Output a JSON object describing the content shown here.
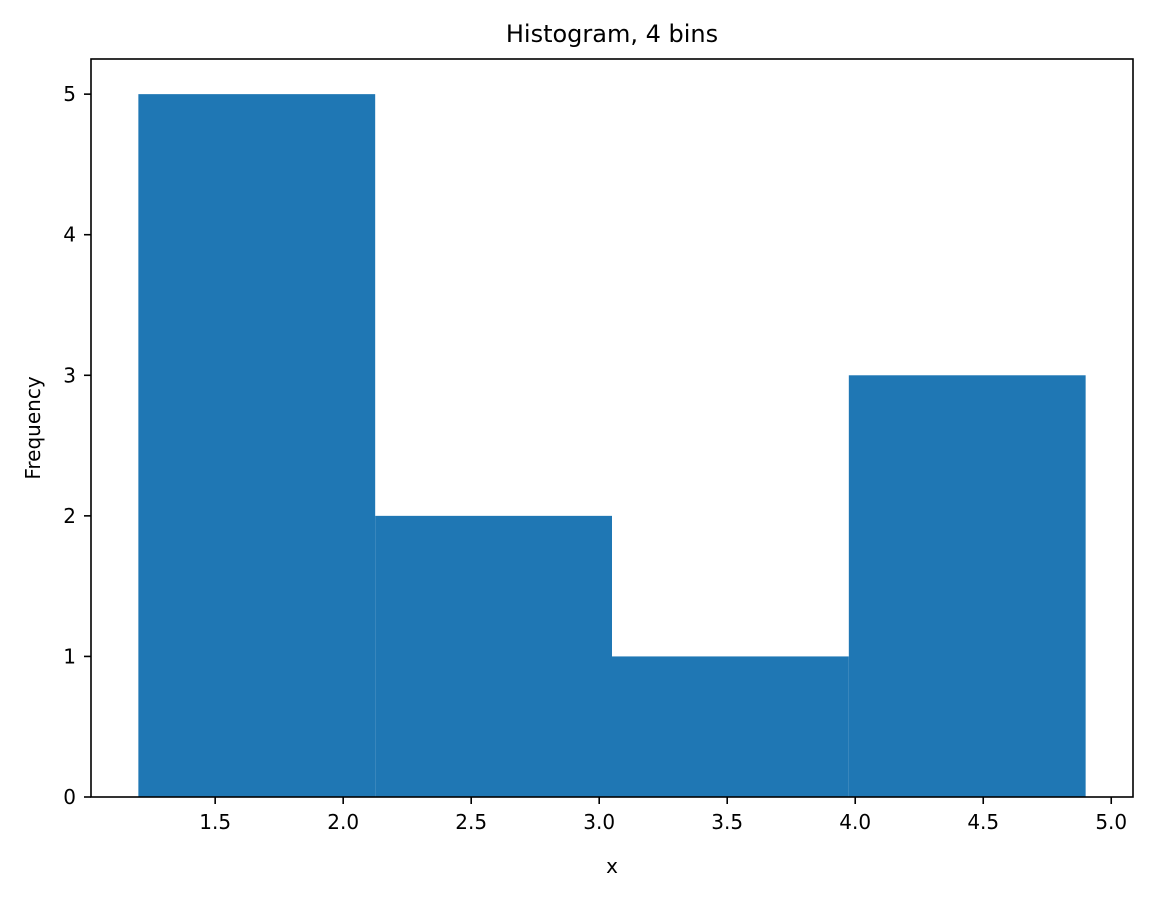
{
  "chart_data": {
    "type": "bar",
    "title": "Histogram, 4 bins",
    "xlabel": "x",
    "ylabel": "Frequency",
    "bin_edges": [
      1.2,
      2.125,
      3.05,
      3.975,
      4.9
    ],
    "values": [
      5,
      2,
      1,
      3
    ],
    "xlim": [
      1.015,
      5.085
    ],
    "ylim": [
      0,
      5.25
    ],
    "x_ticks": [
      1.5,
      2.0,
      2.5,
      3.0,
      3.5,
      4.0,
      4.5,
      5.0
    ],
    "x_tick_labels": [
      "1.5",
      "2.0",
      "2.5",
      "3.0",
      "3.5",
      "4.0",
      "4.5",
      "5.0"
    ],
    "y_ticks": [
      0,
      1,
      2,
      3,
      4,
      5
    ],
    "y_tick_labels": [
      "0",
      "1",
      "2",
      "3",
      "4",
      "5"
    ],
    "grid": false,
    "legend": "none",
    "bar_color": "#1f77b4"
  }
}
